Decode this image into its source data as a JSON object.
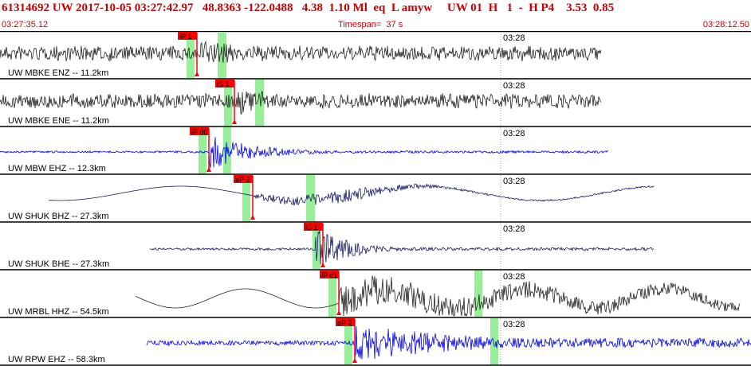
{
  "header": {
    "summary": "61314692 UW 2017-10-05 03:27:42.97   48.8363 -122.0488   4.38  1.10 Ml  eq  L amyw     UW 01  H   1  -  H P4    3.53  0.85",
    "start_time": "03:27:35.12",
    "timespan": "Timespan=  37 s",
    "end_time": "03:28:12.50"
  },
  "colors": {
    "header_text": "#cc0000",
    "pick_flag": "#ff0000",
    "pick_band": "#99ee99",
    "trace_black": "#222222",
    "trace_blue": "#0000ee",
    "trace_navy": "#1a1a66",
    "minute_line": "#aaaaaa"
  },
  "minute_tick_label": "03:28",
  "traces": [
    {
      "label": "UW MBKE ENZ -- 11.2km",
      "color_key": "trace_black",
      "pick": "iP 1",
      "style": "noise",
      "start": 0.0,
      "end": 0.8,
      "pick_pos": 0.262
    },
    {
      "label": "UW MBKE ENE -- 11.2km",
      "color_key": "trace_black",
      "pick": "iS 1",
      "style": "noise",
      "start": 0.0,
      "end": 0.8,
      "pick_pos": 0.312
    },
    {
      "label": "UW MBW EHZ -- 12.3km",
      "color_key": "trace_blue",
      "pick": "iP d0",
      "style": "quake",
      "start": 0.0,
      "end": 0.81,
      "pick_pos": 0.278
    },
    {
      "label": "UW SHUK BHZ -- 27.3km",
      "color_key": "trace_navy",
      "pick": "eP 2",
      "style": "wave",
      "start": 0.065,
      "end": 0.87,
      "pick_pos": 0.336
    },
    {
      "label": "UW SHUK BHE -- 27.3km",
      "color_key": "trace_navy",
      "pick": "iS 1",
      "style": "quake2",
      "start": 0.2,
      "end": 0.87,
      "pick_pos": 0.43
    },
    {
      "label": "UW MRBL HHZ -- 54.5km",
      "color_key": "trace_black",
      "pick": "iP d1",
      "style": "wave2",
      "start": 0.18,
      "end": 0.985,
      "pick_pos": 0.451
    },
    {
      "label": "UW RPW EHZ -- 58.3km",
      "color_key": "trace_blue",
      "pick": "eP 2",
      "style": "quake3",
      "start": 0.195,
      "end": 1.0,
      "pick_pos": 0.472
    }
  ]
}
